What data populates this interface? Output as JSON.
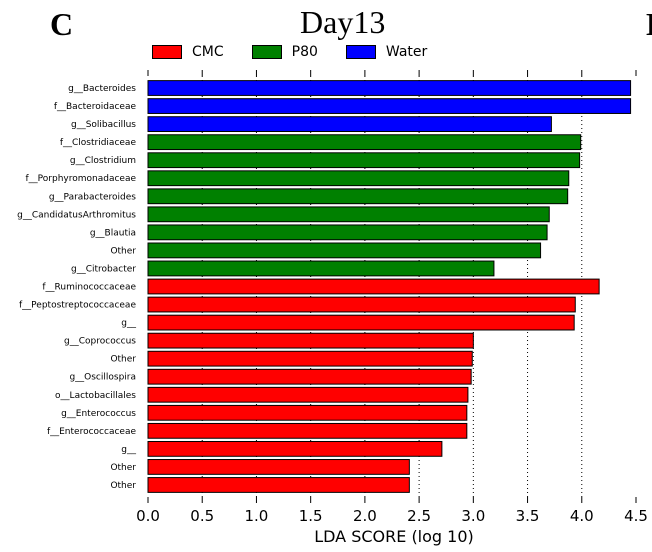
{
  "panel_left": "C",
  "panel_right": "D",
  "chart_data": {
    "type": "bar",
    "orientation": "horizontal",
    "title": "Day13",
    "xlabel": "LDA SCORE (log 10)",
    "xlim": [
      0,
      4.5
    ],
    "xticks": [
      "0.0",
      "0.5",
      "1.0",
      "1.5",
      "2.0",
      "2.5",
      "3.0",
      "3.5",
      "4.0",
      "4.5"
    ],
    "grid": "vertical dotted",
    "legend_position": "top",
    "legend": [
      {
        "name": "CMC",
        "color": "#ff0000"
      },
      {
        "name": "P80",
        "color": "#008000"
      },
      {
        "name": "Water",
        "color": "#0000ff"
      }
    ],
    "categories": [
      "g__Bacteroides",
      "f__Bacteroidaceae",
      "g__Solibacillus",
      "f__Clostridiaceae",
      "g__Clostridium",
      "f__Porphyromonadaceae",
      "g__Parabacteroides",
      "g__CandidatusArthromitus",
      "g__Blautia",
      "Other",
      "g__Citrobacter",
      "f__Ruminococcaceae",
      "f__Peptostreptococcaceae",
      "g__",
      "g__Coprococcus",
      "Other",
      "g__Oscillospira",
      "o__Lactobacillales",
      "g__Enterococcus",
      "f__Enterococcaceae",
      "g__",
      "Other",
      "Other"
    ],
    "values": [
      4.45,
      4.45,
      3.72,
      3.99,
      3.98,
      3.88,
      3.87,
      3.7,
      3.68,
      3.62,
      3.19,
      4.16,
      3.94,
      3.93,
      3.0,
      2.99,
      2.98,
      2.95,
      2.94,
      2.94,
      2.71,
      2.41,
      2.41
    ],
    "groups": [
      "Water",
      "Water",
      "Water",
      "P80",
      "P80",
      "P80",
      "P80",
      "P80",
      "P80",
      "P80",
      "P80",
      "CMC",
      "CMC",
      "CMC",
      "CMC",
      "CMC",
      "CMC",
      "CMC",
      "CMC",
      "CMC",
      "CMC",
      "CMC",
      "CMC"
    ]
  }
}
